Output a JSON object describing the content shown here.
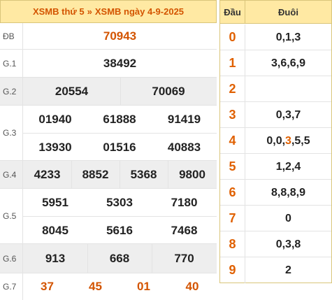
{
  "header": {
    "title_left": "XSMB thứ 5",
    "separator": "»",
    "title_right": "XSMB ngày 4-9-2025"
  },
  "prizes": {
    "db": {
      "label": "ĐB",
      "numbers": [
        "70943"
      ]
    },
    "g1": {
      "label": "G.1",
      "numbers": [
        "38492"
      ]
    },
    "g2": {
      "label": "G.2",
      "numbers": [
        "20554",
        "70069"
      ]
    },
    "g3": {
      "label": "G.3",
      "numbers": [
        "01940",
        "61888",
        "91419",
        "13930",
        "01516",
        "40883"
      ]
    },
    "g4": {
      "label": "G.4",
      "numbers": [
        "4233",
        "8852",
        "5368",
        "9800"
      ]
    },
    "g5": {
      "label": "G.5",
      "numbers": [
        "5951",
        "5303",
        "7180",
        "8045",
        "5616",
        "7468"
      ]
    },
    "g6": {
      "label": "G.6",
      "numbers": [
        "913",
        "668",
        "770"
      ]
    },
    "g7": {
      "label": "G.7",
      "numbers": [
        "37",
        "45",
        "01",
        "40"
      ]
    }
  },
  "loto": {
    "head_label": "Đầu",
    "tail_label": "Đuôi",
    "rows": [
      {
        "head": "0",
        "tail": "0,1,3"
      },
      {
        "head": "1",
        "tail": "3,6,6,9"
      },
      {
        "head": "2",
        "tail": ""
      },
      {
        "head": "3",
        "tail": "0,3,7"
      },
      {
        "head": "4",
        "tail_a": "0,0,",
        "tail_hl": "3",
        "tail_b": ",5,5"
      },
      {
        "head": "5",
        "tail": "1,2,4"
      },
      {
        "head": "6",
        "tail": "8,8,8,9"
      },
      {
        "head": "7",
        "tail": "0"
      },
      {
        "head": "8",
        "tail": "0,3,8"
      },
      {
        "head": "9",
        "tail": "2"
      }
    ]
  },
  "colors": {
    "accent": "#d35400",
    "header_bg": "#ffe9a3",
    "alt_row_bg": "#eeeeee"
  }
}
